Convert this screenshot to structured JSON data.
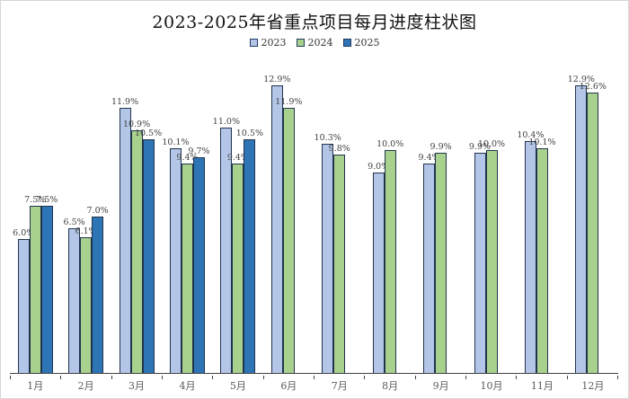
{
  "title": "2023-2025年省重点项目每月进度柱状图",
  "legend": {
    "position": "top",
    "items": [
      {
        "label": "2023",
        "color": "#b4c6e7"
      },
      {
        "label": "2024",
        "color": "#a9d18e"
      },
      {
        "label": "2025",
        "color": "#2e75b6"
      }
    ]
  },
  "colors": {
    "bar_border": "#21344e",
    "axis": "#404040",
    "data_label": "#404040",
    "tick_label": "#595959",
    "frame_border": "#d6d6d6"
  },
  "chart_data": {
    "type": "bar",
    "title": "2023-2025年省重点项目每月进度柱状图",
    "categories": [
      "1月",
      "2月",
      "3月",
      "4月",
      "5月",
      "6月",
      "7月",
      "8月",
      "9月",
      "10月",
      "11月",
      "12月"
    ],
    "series": [
      {
        "name": "2023",
        "color": "#b4c6e7",
        "values": [
          6.0,
          6.5,
          11.9,
          10.1,
          11.0,
          12.9,
          10.3,
          9.0,
          9.4,
          9.9,
          10.4,
          12.9
        ]
      },
      {
        "name": "2024",
        "color": "#a9d18e",
        "values": [
          7.5,
          6.1,
          10.9,
          9.4,
          9.4,
          11.9,
          9.8,
          10.0,
          9.9,
          10.0,
          10.1,
          12.6
        ]
      },
      {
        "name": "2025",
        "color": "#2e75b6",
        "values": [
          7.5,
          7.0,
          10.5,
          9.7,
          10.5,
          null,
          null,
          null,
          null,
          null,
          null,
          null
        ]
      }
    ],
    "data_label_format": "0.0%",
    "xlabel": "",
    "ylabel": "",
    "ylim": [
      0,
      14
    ],
    "grid": false,
    "y_axis_visible": false,
    "legend_position": "top"
  }
}
